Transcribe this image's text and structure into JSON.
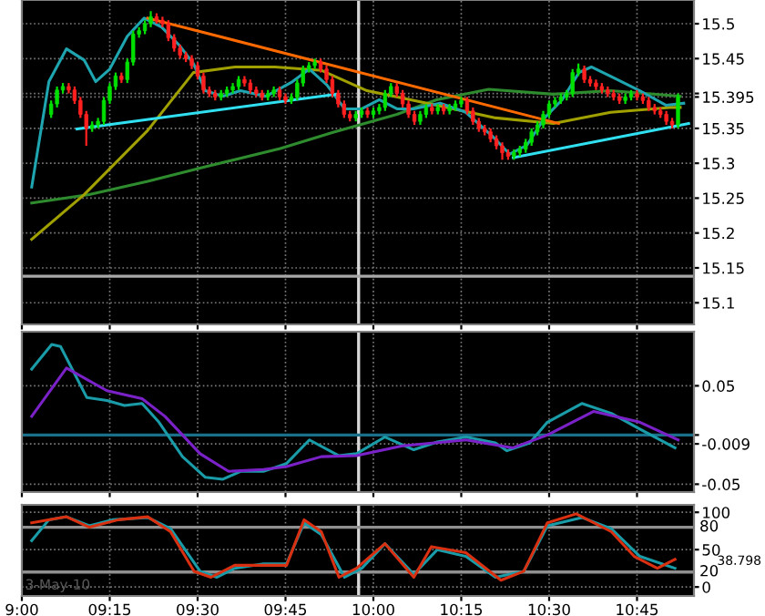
{
  "chart_data": [
    {
      "type": "candlestick",
      "x": [
        9.0833,
        9.1,
        9.1167,
        9.1333,
        9.15,
        9.1667,
        9.1833,
        9.2,
        9.2167,
        9.2333,
        9.25,
        9.2667,
        9.2833,
        9.3,
        9.3167,
        9.3333,
        9.35,
        9.3667,
        9.3833,
        9.4,
        9.4167,
        9.4333,
        9.45,
        9.4667,
        9.4833,
        9.5,
        9.5167,
        9.5333,
        9.55,
        9.5667,
        9.5833,
        9.6,
        9.6167,
        9.6333,
        9.65,
        9.6667,
        9.6833,
        9.7,
        9.7167,
        9.7333,
        9.75,
        9.7667,
        9.7833,
        9.8,
        9.8167,
        9.8333,
        9.85,
        9.8667,
        9.8833,
        9.9,
        9.9167,
        9.9333,
        9.95,
        9.9667,
        9.9833,
        10.0,
        10.0167,
        10.0333,
        10.05,
        10.0667,
        10.0833,
        10.1,
        10.1167,
        10.1333,
        10.15,
        10.1667,
        10.1833,
        10.2,
        10.2167,
        10.2333,
        10.25,
        10.2667,
        10.2833,
        10.3,
        10.3167,
        10.3333,
        10.35,
        10.3667,
        10.3833,
        10.4,
        10.4167,
        10.4333,
        10.45,
        10.4667,
        10.4833,
        10.5,
        10.5167,
        10.5333,
        10.55,
        10.5667,
        10.5833,
        10.6,
        10.6167,
        10.6333,
        10.65,
        10.6667,
        10.6833,
        10.7,
        10.7167,
        10.7333,
        10.75,
        10.7667,
        10.7833,
        10.8,
        10.8167,
        10.8333,
        10.85,
        10.8667
      ],
      "ohlc": [
        [
          15.37,
          15.39,
          15.365,
          15.385
        ],
        [
          15.385,
          15.41,
          15.38,
          15.405
        ],
        [
          15.405,
          15.415,
          15.4,
          15.41
        ],
        [
          15.41,
          15.415,
          15.4,
          15.405
        ],
        [
          15.405,
          15.41,
          15.385,
          15.39
        ],
        [
          15.39,
          15.395,
          15.365,
          15.37
        ],
        [
          15.37,
          15.375,
          15.325,
          15.35
        ],
        [
          15.35,
          15.36,
          15.345,
          15.355
        ],
        [
          15.355,
          15.365,
          15.35,
          15.36
        ],
        [
          15.36,
          15.395,
          15.355,
          15.39
        ],
        [
          15.39,
          15.415,
          15.385,
          15.41
        ],
        [
          15.41,
          15.43,
          15.405,
          15.425
        ],
        [
          15.425,
          15.43,
          15.415,
          15.42
        ],
        [
          15.42,
          15.45,
          15.415,
          15.445
        ],
        [
          15.445,
          15.49,
          15.44,
          15.485
        ],
        [
          15.485,
          15.495,
          15.48,
          15.49
        ],
        [
          15.49,
          15.505,
          15.485,
          15.5
        ],
        [
          15.5,
          15.518,
          15.495,
          15.51
        ],
        [
          15.51,
          15.515,
          15.5,
          15.505
        ],
        [
          15.505,
          15.51,
          15.495,
          15.5
        ],
        [
          15.5,
          15.505,
          15.475,
          15.48
        ],
        [
          15.48,
          15.485,
          15.46,
          15.465
        ],
        [
          15.465,
          15.47,
          15.45,
          15.455
        ],
        [
          15.455,
          15.46,
          15.445,
          15.45
        ],
        [
          15.45,
          15.455,
          15.435,
          15.44
        ],
        [
          15.44,
          15.445,
          15.42,
          15.425
        ],
        [
          15.425,
          15.43,
          15.4,
          15.405
        ],
        [
          15.405,
          15.41,
          15.395,
          15.4
        ],
        [
          15.4,
          15.405,
          15.39,
          15.395
        ],
        [
          15.395,
          15.405,
          15.39,
          15.4
        ],
        [
          15.4,
          15.41,
          15.395,
          15.405
        ],
        [
          15.405,
          15.415,
          15.4,
          15.41
        ],
        [
          15.41,
          15.425,
          15.405,
          15.42
        ],
        [
          15.42,
          15.425,
          15.41,
          15.415
        ],
        [
          15.415,
          15.42,
          15.4,
          15.405
        ],
        [
          15.405,
          15.41,
          15.395,
          15.4
        ],
        [
          15.4,
          15.405,
          15.39,
          15.395
        ],
        [
          15.395,
          15.405,
          15.39,
          15.4
        ],
        [
          15.4,
          15.41,
          15.395,
          15.405
        ],
        [
          15.405,
          15.41,
          15.39,
          15.395
        ],
        [
          15.395,
          15.4,
          15.385,
          15.39
        ],
        [
          15.39,
          15.4,
          15.385,
          15.395
        ],
        [
          15.395,
          15.42,
          15.39,
          15.415
        ],
        [
          15.415,
          15.44,
          15.41,
          15.435
        ],
        [
          15.435,
          15.445,
          15.43,
          15.44
        ],
        [
          15.44,
          15.45,
          15.435,
          15.445
        ],
        [
          15.445,
          15.45,
          15.43,
          15.435
        ],
        [
          15.435,
          15.44,
          15.415,
          15.42
        ],
        [
          15.42,
          15.425,
          15.395,
          15.4
        ],
        [
          15.4,
          15.405,
          15.38,
          15.385
        ],
        [
          15.385,
          15.39,
          15.365,
          15.37
        ],
        [
          15.37,
          15.375,
          15.36,
          15.365
        ],
        [
          15.365,
          15.375,
          15.36,
          15.37
        ],
        [
          15.37,
          15.38,
          15.365,
          15.375
        ],
        [
          15.375,
          15.38,
          15.365,
          15.37
        ],
        [
          15.37,
          15.38,
          15.365,
          15.375
        ],
        [
          15.375,
          15.385,
          15.37,
          15.38
        ],
        [
          15.38,
          15.405,
          15.375,
          15.4
        ],
        [
          15.4,
          15.415,
          15.395,
          15.41
        ],
        [
          15.41,
          15.415,
          15.395,
          15.4
        ],
        [
          15.4,
          15.405,
          15.38,
          15.385
        ],
        [
          15.385,
          15.39,
          15.365,
          15.37
        ],
        [
          15.37,
          15.375,
          15.355,
          15.36
        ],
        [
          15.36,
          15.375,
          15.355,
          15.37
        ],
        [
          15.37,
          15.385,
          15.365,
          15.38
        ],
        [
          15.38,
          15.385,
          15.37,
          15.375
        ],
        [
          15.375,
          15.385,
          15.37,
          15.38
        ],
        [
          15.38,
          15.385,
          15.37,
          15.375
        ],
        [
          15.375,
          15.385,
          15.37,
          15.38
        ],
        [
          15.38,
          15.39,
          15.375,
          15.385
        ],
        [
          15.385,
          15.395,
          15.38,
          15.39
        ],
        [
          15.39,
          15.395,
          15.37,
          15.375
        ],
        [
          15.375,
          15.38,
          15.355,
          15.36
        ],
        [
          15.36,
          15.365,
          15.345,
          15.35
        ],
        [
          15.35,
          15.355,
          15.34,
          15.345
        ],
        [
          15.345,
          15.35,
          15.33,
          15.335
        ],
        [
          15.335,
          15.34,
          15.32,
          15.325
        ],
        [
          15.325,
          15.33,
          15.305,
          15.315
        ],
        [
          15.315,
          15.32,
          15.305,
          15.31
        ],
        [
          15.31,
          15.32,
          15.305,
          15.315
        ],
        [
          15.315,
          15.325,
          15.31,
          15.32
        ],
        [
          15.32,
          15.335,
          15.315,
          15.33
        ],
        [
          15.33,
          15.35,
          15.325,
          15.345
        ],
        [
          15.345,
          15.36,
          15.34,
          15.355
        ],
        [
          15.355,
          15.375,
          15.35,
          15.37
        ],
        [
          15.37,
          15.39,
          15.365,
          15.385
        ],
        [
          15.385,
          15.395,
          15.38,
          15.39
        ],
        [
          15.39,
          15.4,
          15.385,
          15.395
        ],
        [
          15.395,
          15.405,
          15.39,
          15.4
        ],
        [
          15.4,
          15.435,
          15.395,
          15.43
        ],
        [
          15.43,
          15.443,
          15.425,
          15.435
        ],
        [
          15.435,
          15.44,
          15.415,
          15.42
        ],
        [
          15.42,
          15.425,
          15.41,
          15.415
        ],
        [
          15.415,
          15.42,
          15.405,
          15.41
        ],
        [
          15.41,
          15.415,
          15.4,
          15.405
        ],
        [
          15.405,
          15.41,
          15.395,
          15.4
        ],
        [
          15.4,
          15.405,
          15.39,
          15.395
        ],
        [
          15.395,
          15.4,
          15.385,
          15.39
        ],
        [
          15.39,
          15.4,
          15.385,
          15.395
        ],
        [
          15.395,
          15.405,
          15.39,
          15.4
        ],
        [
          15.4,
          15.405,
          15.39,
          15.395
        ],
        [
          15.395,
          15.4,
          15.385,
          15.39
        ],
        [
          15.39,
          15.395,
          15.375,
          15.38
        ],
        [
          15.38,
          15.385,
          15.37,
          15.375
        ],
        [
          15.375,
          15.38,
          15.365,
          15.37
        ],
        [
          15.37,
          15.375,
          15.355,
          15.36
        ],
        [
          15.36,
          15.365,
          15.35,
          15.355
        ],
        [
          15.355,
          15.4,
          15.35,
          15.395
        ]
      ],
      "colors": [
        "#00e000",
        "#00e000",
        "#00e000",
        "#ff2020",
        "#ff2020",
        "#ff2020",
        "#ff2020",
        "#00e000",
        "#00e000",
        "#00e000",
        "#00e000",
        "#00e000",
        "#ff2020",
        "#00e000",
        "#00e000",
        "#00e000",
        "#00e000",
        "#00e000",
        "#ff2020",
        "#ff2020",
        "#ff2020",
        "#ff2020",
        "#ff2020",
        "#ff2020",
        "#ff2020",
        "#ff2020",
        "#ff2020",
        "#ff2020",
        "#ff2020",
        "#00e000",
        "#00e000",
        "#00e000",
        "#00e000",
        "#ff2020",
        "#ff2020",
        "#ff2020",
        "#ff2020",
        "#00e000",
        "#00e000",
        "#ff2020",
        "#ff2020",
        "#00e000",
        "#00e000",
        "#00e000",
        "#00e000",
        "#00e000",
        "#ff2020",
        "#ff2020",
        "#ff2020",
        "#ff2020",
        "#ff2020",
        "#ff2020",
        "#00e000",
        "#00e000",
        "#ff2020",
        "#00e000",
        "#00e000",
        "#00e000",
        "#00e000",
        "#ff2020",
        "#ff2020",
        "#ff2020",
        "#ff2020",
        "#00e000",
        "#00e000",
        "#ff2020",
        "#00e000",
        "#ff2020",
        "#00e000",
        "#00e000",
        "#00e000",
        "#ff2020",
        "#ff2020",
        "#ff2020",
        "#ff2020",
        "#ff2020",
        "#ff2020",
        "#ff2020",
        "#ff2020",
        "#00e000",
        "#00e000",
        "#00e000",
        "#00e000",
        "#00e000",
        "#00e000",
        "#00e000",
        "#00e000",
        "#00e000",
        "#00e000",
        "#00e000",
        "#00e000",
        "#ff2020",
        "#ff2020",
        "#ff2020",
        "#ff2020",
        "#ff2020",
        "#ff2020",
        "#ff2020",
        "#00e000",
        "#00e000",
        "#ff2020",
        "#ff2020",
        "#ff2020",
        "#ff2020",
        "#ff2020",
        "#ff2020",
        "#ff2020",
        "#00e000"
      ],
      "series": [
        {
          "type": "line",
          "color": "#2e8b2e",
          "x": [
            9.028,
            9.192,
            9.358,
            9.522,
            9.735,
            9.883,
            10.067,
            10.18,
            10.328,
            10.512,
            10.675,
            10.873
          ],
          "values": [
            15.243,
            15.255,
            15.274,
            15.295,
            15.321,
            15.344,
            15.37,
            15.391,
            15.406,
            15.399,
            15.404,
            15.396
          ]
        },
        {
          "type": "line",
          "color": "#a0a000",
          "x": [
            9.028,
            9.177,
            9.358,
            9.488,
            9.607,
            9.72,
            9.853,
            9.982,
            10.18,
            10.348,
            10.512,
            10.675,
            10.843,
            10.873
          ],
          "values": [
            15.191,
            15.255,
            15.347,
            15.43,
            15.438,
            15.438,
            15.433,
            15.404,
            15.383,
            15.365,
            15.357,
            15.373,
            15.38,
            15.38
          ]
        },
        {
          "type": "line",
          "color": "#1fa5b0",
          "x": [
            9.028,
            9.077,
            9.127,
            9.177,
            9.21,
            9.25,
            9.3,
            9.348,
            9.398,
            9.448,
            9.488,
            9.522,
            9.572,
            9.622,
            9.695,
            9.77,
            9.818,
            9.868,
            9.918,
            9.967,
            10.017,
            10.067,
            10.115,
            10.19,
            10.263,
            10.338,
            10.388,
            10.437,
            10.487,
            10.537,
            10.585,
            10.62,
            10.685,
            10.758,
            10.833,
            10.883
          ],
          "values": [
            15.266,
            15.417,
            15.464,
            15.448,
            15.417,
            15.435,
            15.482,
            15.508,
            15.495,
            15.469,
            15.443,
            15.404,
            15.396,
            15.404,
            15.396,
            15.417,
            15.435,
            15.412,
            15.378,
            15.378,
            15.391,
            15.378,
            15.378,
            15.386,
            15.373,
            15.339,
            15.313,
            15.326,
            15.365,
            15.391,
            15.43,
            15.438,
            15.422,
            15.404,
            15.383,
            15.386
          ]
        },
        {
          "type": "line",
          "color": "#ff6a00",
          "x": [
            9.358,
            10.527
          ],
          "values": [
            15.508,
            15.357
          ]
        },
        {
          "type": "line",
          "color": "#30e0f0",
          "x": [
            9.157,
            9.893
          ],
          "values": [
            15.349,
            15.399
          ]
        },
        {
          "type": "line",
          "color": "#30e0f0",
          "x": [
            10.398,
            10.897
          ],
          "values": [
            15.308,
            15.357
          ]
        }
      ],
      "xlim": [
        9.0,
        10.912
      ],
      "xticks": [
        {
          "value": 9,
          "label": null
        },
        {
          "value": 9.25,
          "label": null
        },
        {
          "value": 9.5,
          "label": null
        },
        {
          "value": 9.75,
          "label": null
        },
        {
          "value": 10,
          "label": null
        },
        {
          "value": 10.25,
          "label": null
        },
        {
          "value": 10.5,
          "label": null
        },
        {
          "value": 10.75,
          "label": null
        }
      ],
      "ylim": [
        15.069,
        15.534
      ],
      "yticks": [
        15.1,
        15.15,
        15.2,
        15.25,
        15.3,
        15.35,
        {
          "value": 15.395,
          "label": "15.395"
        },
        {
          "value": 15.4,
          "label": null
        },
        15.45,
        15.5
      ],
      "grid": true,
      "tick_labels": "y",
      "ref_lines": [
        {
          "axis": "x",
          "value": 9.958,
          "color": "#d8d8d8",
          "line_style": "solid"
        },
        {
          "axis": "y",
          "value": 15.138,
          "color": "#a8a8a8",
          "line_style": "solid"
        }
      ]
    },
    {
      "type": "line",
      "series": [
        {
          "color": "#1a9ca8",
          "x": [
            9.028,
            9.085,
            9.11,
            9.185,
            9.242,
            9.292,
            9.342,
            9.39,
            9.457,
            9.522,
            9.572,
            9.622,
            9.687,
            9.753,
            9.818,
            9.902,
            9.952,
            10.033,
            10.115,
            10.182,
            10.263,
            10.347,
            10.38,
            10.445,
            10.495,
            10.593,
            10.677,
            10.758,
            10.858
          ],
          "values": [
            0.067,
            0.092,
            0.09,
            0.038,
            0.035,
            0.03,
            0.032,
            0.013,
            -0.022,
            -0.043,
            -0.045,
            -0.037,
            -0.037,
            -0.029,
            -0.005,
            -0.021,
            -0.019,
            -0.002,
            -0.015,
            -0.007,
            -0.002,
            -0.008,
            -0.016,
            -0.008,
            0.013,
            0.032,
            0.022,
            0.006,
            -0.013
          ]
        },
        {
          "color": "#7a22c8",
          "x": [
            9.028,
            9.127,
            9.242,
            9.342,
            9.407,
            9.507,
            9.588,
            9.687,
            9.753,
            9.852,
            9.952,
            10.083,
            10.263,
            10.397,
            10.495,
            10.627,
            10.758,
            10.867
          ],
          "values": [
            0.019,
            0.068,
            0.045,
            0.037,
            0.019,
            -0.019,
            -0.037,
            -0.035,
            -0.032,
            -0.022,
            -0.021,
            -0.011,
            -0.005,
            -0.013,
            0.0,
            0.024,
            0.013,
            -0.005
          ]
        }
      ],
      "xlim": [
        9.0,
        10.912
      ],
      "xticks": [
        {
          "value": 9,
          "label": null
        },
        {
          "value": 9.25,
          "label": null
        },
        {
          "value": 9.5,
          "label": null
        },
        {
          "value": 9.75,
          "label": null
        },
        {
          "value": 10,
          "label": null
        },
        {
          "value": 10.25,
          "label": null
        },
        {
          "value": 10.5,
          "label": null
        },
        {
          "value": 10.75,
          "label": null
        }
      ],
      "ylim": [
        -0.058,
        0.105
      ],
      "yticks": [
        0.05,
        {
          "value": 0,
          "label": null
        },
        {
          "value": -0.009,
          "label": "-0.009"
        },
        -0.05
      ],
      "grid": true,
      "tick_labels": "y",
      "ref_lines": [
        {
          "axis": "x",
          "value": 9.958,
          "color": "#d8d8d8",
          "line_style": "solid"
        },
        {
          "axis": "y",
          "value": 0,
          "color": "#1a6f8a",
          "line_style": "solid"
        }
      ]
    },
    {
      "type": "line",
      "series": [
        {
          "color": "#1a9ca8",
          "x": [
            9.028,
            9.077,
            9.127,
            9.192,
            9.258,
            9.358,
            9.423,
            9.507,
            9.555,
            9.605,
            9.687,
            9.753,
            9.803,
            9.852,
            9.918,
            9.967,
            10.033,
            10.115,
            10.182,
            10.263,
            10.347,
            10.428,
            10.495,
            10.593,
            10.677,
            10.758,
            10.858
          ],
          "values": [
            62,
            90,
            94,
            82,
            90,
            93,
            78,
            21,
            13,
            25,
            31,
            31,
            86,
            70,
            13,
            25,
            58,
            17,
            50,
            41,
            13,
            21,
            82,
            93,
            78,
            41,
            25
          ]
        },
        {
          "color": "#d83010",
          "x": [
            9.028,
            9.127,
            9.192,
            9.275,
            9.358,
            9.423,
            9.49,
            9.538,
            9.605,
            9.687,
            9.753,
            9.803,
            9.852,
            9.902,
            9.952,
            10.033,
            10.115,
            10.165,
            10.263,
            10.363,
            10.428,
            10.495,
            10.577,
            10.677,
            10.742,
            10.808,
            10.858
          ],
          "values": [
            86,
            94,
            80,
            90,
            94,
            74,
            21,
            13,
            29,
            29,
            29,
            90,
            74,
            13,
            25,
            58,
            13,
            54,
            46,
            9,
            21,
            86,
            98,
            74,
            41,
            25,
            37
          ]
        }
      ],
      "xlim": [
        9.0,
        10.912
      ],
      "xticks": [
        {
          "value": 9,
          "label": "9:00"
        },
        {
          "value": 9.25,
          "label": "09:15"
        },
        {
          "value": 9.5,
          "label": "09:30"
        },
        {
          "value": 9.75,
          "label": "09:45"
        },
        {
          "value": 10,
          "label": "10:00"
        },
        {
          "value": 10.25,
          "label": "10:15"
        },
        {
          "value": 10.5,
          "label": "10:30"
        },
        {
          "value": 10.75,
          "label": "10:45"
        }
      ],
      "ylim": [
        -12,
        110
      ],
      "yticks": [
        0,
        50,
        100
      ],
      "grid": true,
      "ref_lines": [
        {
          "axis": "x",
          "value": 9.958,
          "color": "#d8d8d8",
          "line_style": "solid"
        },
        {
          "axis": "y",
          "value": 80,
          "label": "80",
          "color": "#909090",
          "line_style": "solid"
        },
        {
          "axis": "y",
          "value": 20,
          "label": "20",
          "color": "#909090",
          "line_style": "solid"
        }
      ],
      "annotations": [
        "3-May-10",
        "38.798"
      ]
    }
  ]
}
